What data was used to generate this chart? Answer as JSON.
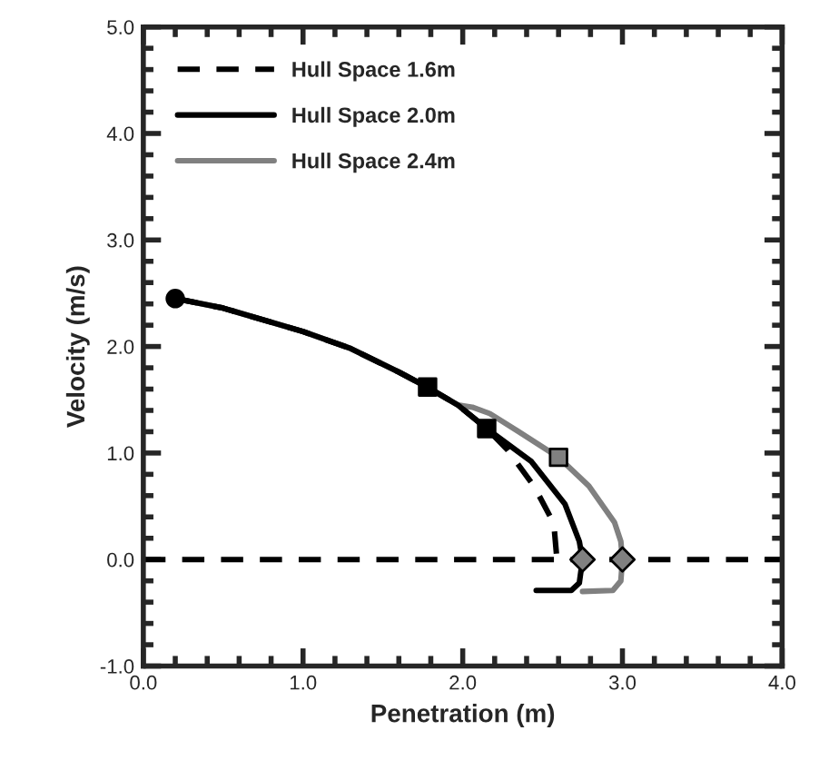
{
  "chart_data": {
    "type": "line",
    "xlabel": "Penetration (m)",
    "ylabel": "Velocity (m/s)",
    "xlim": [
      0,
      4
    ],
    "ylim": [
      -1,
      5
    ],
    "xticks": [
      {
        "value": 0,
        "label": "0.0"
      },
      {
        "value": 1,
        "label": "1.0"
      },
      {
        "value": 2,
        "label": "2.0"
      },
      {
        "value": 3,
        "label": "3.0"
      },
      {
        "value": 4,
        "label": "4.0"
      }
    ],
    "yticks": [
      {
        "value": -1,
        "label": "-1.0"
      },
      {
        "value": 0,
        "label": "0.0"
      },
      {
        "value": 1,
        "label": "1.0"
      },
      {
        "value": 2,
        "label": "2.0"
      },
      {
        "value": 3,
        "label": "3.0"
      },
      {
        "value": 4,
        "label": "4.0"
      },
      {
        "value": 5,
        "label": "5.0"
      }
    ],
    "legend": "top left",
    "grid": false,
    "series": [
      {
        "name": "Hull Space 1.6m",
        "color": "#000000",
        "line_style": "dashed",
        "x": [
          0.2,
          0.5,
          1.0,
          1.3,
          1.6,
          1.8,
          1.97,
          2.15,
          2.28,
          2.45,
          2.57,
          2.59
        ],
        "values": [
          2.45,
          2.36,
          2.14,
          1.98,
          1.76,
          1.6,
          1.45,
          1.23,
          1.03,
          0.68,
          0.34,
          0.0
        ]
      },
      {
        "name": "Hull Space 2.0m",
        "color": "#000000",
        "line_style": "solid",
        "x": [
          0.2,
          0.5,
          1.0,
          1.3,
          1.6,
          1.8,
          1.97,
          2.15,
          2.43,
          2.64,
          2.73,
          2.75,
          2.73,
          2.68,
          2.46
        ],
        "values": [
          2.45,
          2.36,
          2.14,
          1.98,
          1.76,
          1.6,
          1.45,
          1.23,
          0.92,
          0.52,
          0.17,
          0.0,
          -0.22,
          -0.29,
          -0.29
        ]
      },
      {
        "name": "Hull Space 2.4m",
        "color": "#808080",
        "line_style": "solid",
        "x": [
          0.2,
          0.5,
          1.0,
          1.3,
          1.6,
          1.8,
          1.97,
          2.06,
          2.17,
          2.35,
          2.6,
          2.79,
          2.95,
          2.99,
          3.0,
          2.99,
          2.94,
          2.75
        ],
        "values": [
          2.45,
          2.36,
          2.14,
          1.98,
          1.76,
          1.6,
          1.45,
          1.43,
          1.37,
          1.2,
          0.96,
          0.69,
          0.35,
          0.17,
          0.0,
          -0.2,
          -0.29,
          -0.3
        ]
      },
      {
        "type": "scatter",
        "marker": "circle",
        "color": "#000000",
        "x": [
          0.2
        ],
        "values": [
          2.45
        ]
      },
      {
        "type": "scatter",
        "marker": "square",
        "color": "#000000",
        "x": [
          1.78,
          2.15
        ],
        "values": [
          1.62,
          1.23
        ]
      },
      {
        "type": "scatter",
        "marker": "square",
        "color": "#808080",
        "x": [
          2.6
        ],
        "values": [
          0.96
        ]
      },
      {
        "type": "scatter",
        "marker": "diamond",
        "color": "#808080",
        "x": [
          2.75,
          3.0
        ],
        "values": [
          0.0,
          0.0
        ]
      }
    ],
    "ref_lines": [
      {
        "axis": "y",
        "value": 0,
        "color": "#000000",
        "line_style": "dashed"
      }
    ]
  }
}
